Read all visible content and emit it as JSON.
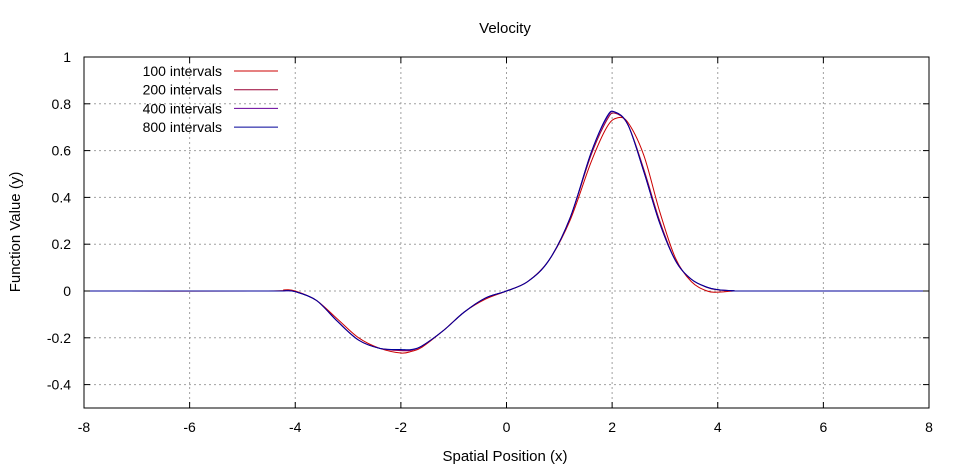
{
  "chart_data": {
    "type": "line",
    "title": "Velocity",
    "xlabel": "Spatial Position (x)",
    "ylabel": "Function Value (y)",
    "xlim": [
      -8,
      8
    ],
    "ylim": [
      -0.5,
      1
    ],
    "xticks": [
      -8,
      -6,
      -4,
      -2,
      0,
      2,
      4,
      6,
      8
    ],
    "yticks": [
      -0.4,
      -0.2,
      0,
      0.2,
      0.4,
      0.6,
      0.8,
      1
    ],
    "xtick_labels": [
      "-8",
      "-6",
      "-4",
      "-2",
      "0",
      "2",
      "4",
      "6",
      "8"
    ],
    "ytick_labels": [
      "-0.4",
      "-0.2",
      "0",
      "0.2",
      "0.4",
      "0.6",
      "0.8",
      "1"
    ],
    "grid": true,
    "legend_position": "top-left",
    "series": [
      {
        "name": "100 intervals",
        "color": "#cc0000",
        "x": [
          -8,
          -4.6,
          -4.2,
          -4.0,
          -3.6,
          -3.2,
          -2.8,
          -2.4,
          -2.0,
          -1.8,
          -1.6,
          -1.2,
          -0.8,
          -0.4,
          0.0,
          0.4,
          0.8,
          1.2,
          1.6,
          1.9,
          2.1,
          2.3,
          2.6,
          2.9,
          3.2,
          3.5,
          3.8,
          4.0,
          4.3,
          4.6,
          8
        ],
        "y": [
          0,
          0,
          0.005,
          0,
          -0.04,
          -0.12,
          -0.2,
          -0.245,
          -0.265,
          -0.258,
          -0.24,
          -0.17,
          -0.09,
          -0.035,
          0,
          0.04,
          0.13,
          0.3,
          0.55,
          0.7,
          0.74,
          0.72,
          0.58,
          0.34,
          0.14,
          0.04,
          0.0,
          -0.005,
          0,
          0,
          0
        ]
      },
      {
        "name": "200 intervals",
        "color": "#990033",
        "x": [
          -8,
          -4.6,
          -4.2,
          -4.0,
          -3.6,
          -3.2,
          -2.8,
          -2.4,
          -2.0,
          -1.8,
          -1.6,
          -1.2,
          -0.8,
          -0.4,
          0.0,
          0.4,
          0.8,
          1.2,
          1.6,
          1.9,
          2.05,
          2.3,
          2.6,
          2.9,
          3.2,
          3.5,
          3.8,
          4.0,
          4.3,
          4.6,
          8
        ],
        "y": [
          0,
          0,
          0.002,
          -0.002,
          -0.04,
          -0.13,
          -0.21,
          -0.245,
          -0.255,
          -0.253,
          -0.235,
          -0.17,
          -0.09,
          -0.03,
          0,
          0.04,
          0.13,
          0.31,
          0.58,
          0.73,
          0.76,
          0.71,
          0.52,
          0.3,
          0.13,
          0.05,
          0.015,
          0.005,
          0.001,
          0,
          0
        ]
      },
      {
        "name": "400 intervals",
        "color": "#660099",
        "x": [
          -8,
          -4.6,
          -4.2,
          -4.0,
          -3.6,
          -3.2,
          -2.8,
          -2.4,
          -2.0,
          -1.8,
          -1.6,
          -1.2,
          -0.8,
          -0.4,
          0.0,
          0.4,
          0.8,
          1.2,
          1.6,
          1.9,
          2.05,
          2.3,
          2.6,
          2.9,
          3.2,
          3.5,
          3.8,
          4.0,
          4.3,
          4.6,
          8
        ],
        "y": [
          0,
          0,
          0.001,
          -0.003,
          -0.04,
          -0.13,
          -0.21,
          -0.245,
          -0.252,
          -0.252,
          -0.235,
          -0.17,
          -0.09,
          -0.03,
          0,
          0.04,
          0.13,
          0.31,
          0.59,
          0.74,
          0.765,
          0.71,
          0.51,
          0.29,
          0.13,
          0.05,
          0.016,
          0.006,
          0.001,
          0,
          0
        ]
      },
      {
        "name": "800 intervals",
        "color": "#000099",
        "x": [
          -8,
          -4.6,
          -4.2,
          -4.0,
          -3.6,
          -3.2,
          -2.8,
          -2.4,
          -2.0,
          -1.8,
          -1.6,
          -1.2,
          -0.8,
          -0.4,
          0.0,
          0.4,
          0.8,
          1.2,
          1.6,
          1.9,
          2.05,
          2.3,
          2.6,
          2.9,
          3.2,
          3.5,
          3.8,
          4.0,
          4.3,
          4.6,
          8
        ],
        "y": [
          0,
          0,
          0.001,
          -0.003,
          -0.04,
          -0.13,
          -0.21,
          -0.245,
          -0.25,
          -0.25,
          -0.235,
          -0.17,
          -0.09,
          -0.03,
          0,
          0.04,
          0.13,
          0.31,
          0.59,
          0.745,
          0.765,
          0.71,
          0.51,
          0.29,
          0.13,
          0.05,
          0.016,
          0.006,
          0.001,
          0,
          0
        ]
      }
    ]
  }
}
